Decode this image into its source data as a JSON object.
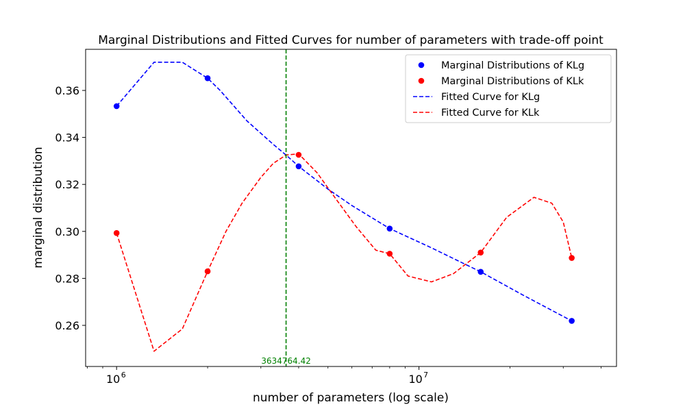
{
  "chart_data": {
    "type": "line",
    "title": "Marginal Distributions and Fitted Curves for number of parameters with trade-off point",
    "xlabel": "number of parameters (log scale)",
    "ylabel": "marginal distribution",
    "xscale": "log",
    "xlim": [
      790000,
      45000000
    ],
    "ylim": [
      0.2425,
      0.3775
    ],
    "x_ticks": [
      {
        "value": 1000000,
        "base": "10",
        "exp": "6"
      },
      {
        "value": 10000000,
        "base": "10",
        "exp": "7"
      }
    ],
    "y_ticks": [
      {
        "value": 0.26,
        "label": "0.26"
      },
      {
        "value": 0.28,
        "label": "0.28"
      },
      {
        "value": 0.3,
        "label": "0.30"
      },
      {
        "value": 0.32,
        "label": "0.32"
      },
      {
        "value": 0.34,
        "label": "0.34"
      },
      {
        "value": 0.36,
        "label": "0.36"
      }
    ],
    "grid": false,
    "legend_position": "top-right",
    "scatter_series": [
      {
        "name": "Marginal Distributions of KLg",
        "color": "#0000ff",
        "points": [
          {
            "x": 1000000,
            "y": 0.3533
          },
          {
            "x": 2000000,
            "y": 0.3652
          },
          {
            "x": 4000000,
            "y": 0.3277
          },
          {
            "x": 8000000,
            "y": 0.3012
          },
          {
            "x": 16000000,
            "y": 0.2828
          },
          {
            "x": 32000000,
            "y": 0.2619
          }
        ]
      },
      {
        "name": "Marginal Distributions of KLk",
        "color": "#ff0000",
        "points": [
          {
            "x": 1000000,
            "y": 0.2993
          },
          {
            "x": 2000000,
            "y": 0.283
          },
          {
            "x": 4000000,
            "y": 0.3326
          },
          {
            "x": 8000000,
            "y": 0.2905
          },
          {
            "x": 16000000,
            "y": 0.291
          },
          {
            "x": 32000000,
            "y": 0.2887
          }
        ]
      }
    ],
    "line_series": [
      {
        "name": "Fitted Curve for KLg",
        "color": "#0000ff",
        "style": "dashed",
        "points": [
          {
            "x": 1000000,
            "y": 0.3533
          },
          {
            "x": 1330000,
            "y": 0.372
          },
          {
            "x": 1650000,
            "y": 0.372
          },
          {
            "x": 2000000,
            "y": 0.3652
          },
          {
            "x": 2200000,
            "y": 0.36
          },
          {
            "x": 2700000,
            "y": 0.347
          },
          {
            "x": 3300000,
            "y": 0.337
          },
          {
            "x": 3634764,
            "y": 0.3325
          },
          {
            "x": 4000000,
            "y": 0.3277
          },
          {
            "x": 5000000,
            "y": 0.318
          },
          {
            "x": 6000000,
            "y": 0.311
          },
          {
            "x": 8000000,
            "y": 0.3012
          },
          {
            "x": 11000000,
            "y": 0.293
          },
          {
            "x": 16000000,
            "y": 0.2828
          },
          {
            "x": 22000000,
            "y": 0.273
          },
          {
            "x": 32000000,
            "y": 0.2619
          }
        ]
      },
      {
        "name": "Fitted Curve for KLk",
        "color": "#ff0000",
        "style": "dashed",
        "points": [
          {
            "x": 1000000,
            "y": 0.2993
          },
          {
            "x": 1330000,
            "y": 0.249
          },
          {
            "x": 1650000,
            "y": 0.2585
          },
          {
            "x": 2000000,
            "y": 0.283
          },
          {
            "x": 2300000,
            "y": 0.3
          },
          {
            "x": 2600000,
            "y": 0.312
          },
          {
            "x": 3000000,
            "y": 0.323
          },
          {
            "x": 3300000,
            "y": 0.329
          },
          {
            "x": 3634764,
            "y": 0.3325
          },
          {
            "x": 4000000,
            "y": 0.333
          },
          {
            "x": 4600000,
            "y": 0.325
          },
          {
            "x": 5300000,
            "y": 0.314
          },
          {
            "x": 6200000,
            "y": 0.302
          },
          {
            "x": 7200000,
            "y": 0.292
          },
          {
            "x": 8000000,
            "y": 0.2905
          },
          {
            "x": 9200000,
            "y": 0.281
          },
          {
            "x": 11000000,
            "y": 0.2785
          },
          {
            "x": 13000000,
            "y": 0.282
          },
          {
            "x": 16000000,
            "y": 0.291
          },
          {
            "x": 19500000,
            "y": 0.306
          },
          {
            "x": 24000000,
            "y": 0.3145
          },
          {
            "x": 27500000,
            "y": 0.312
          },
          {
            "x": 30000000,
            "y": 0.304
          },
          {
            "x": 32000000,
            "y": 0.2887
          }
        ]
      }
    ],
    "tradeoff": {
      "x": 3634764.42,
      "label": "3634764.42",
      "color": "#008000",
      "style": "dashed"
    },
    "legend_entries": [
      {
        "label": "Marginal Distributions of KLg",
        "kind": "marker",
        "color": "#0000ff"
      },
      {
        "label": "Marginal Distributions of KLk",
        "kind": "marker",
        "color": "#ff0000"
      },
      {
        "label": "Fitted Curve for KLg",
        "kind": "dashed-line",
        "color": "#0000ff"
      },
      {
        "label": "Fitted Curve for KLk",
        "kind": "dashed-line",
        "color": "#ff0000"
      }
    ]
  }
}
